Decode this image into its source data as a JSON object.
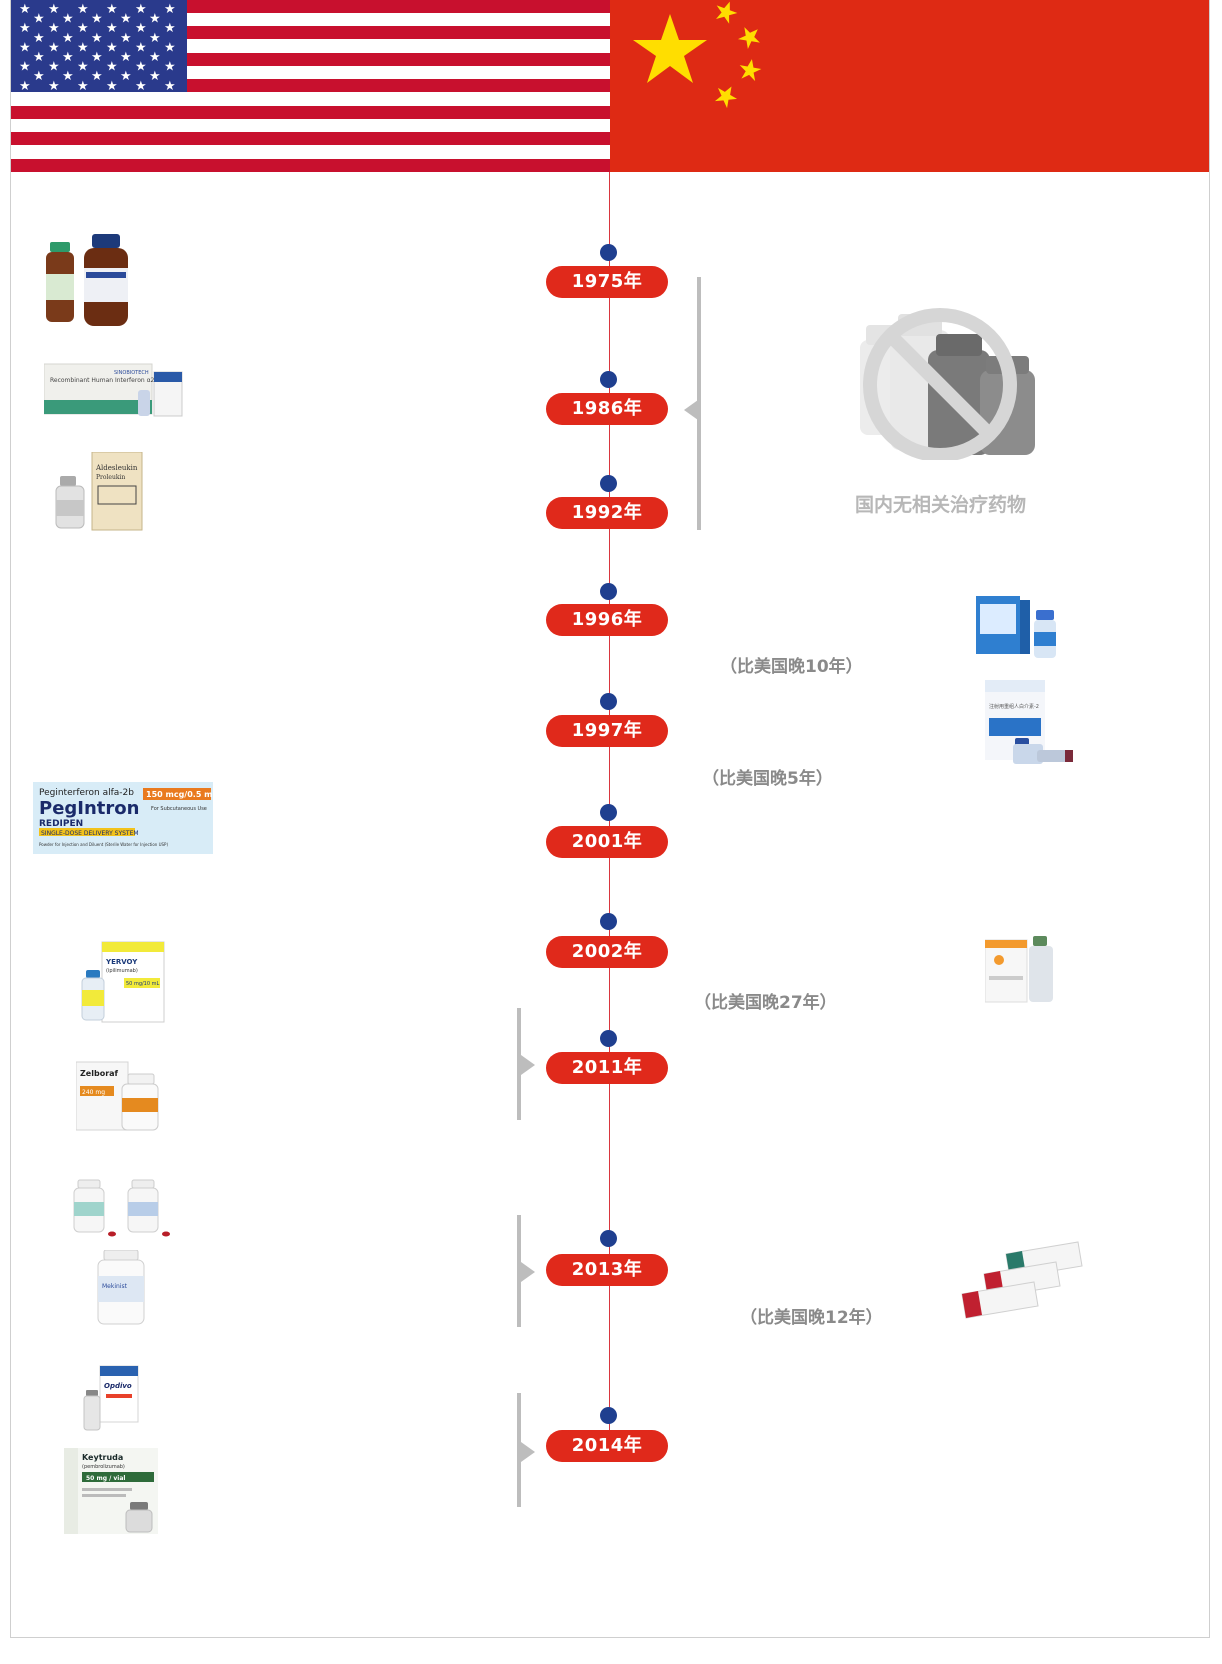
{
  "timeline": {
    "years": [
      "1975年",
      "1986年",
      "1992年",
      "1996年",
      "1997年",
      "2001年",
      "2002年",
      "2011年",
      "2013年",
      "2014年"
    ]
  },
  "china": {
    "no_drug_label": "国内无相关治疗药物",
    "lag_notes": [
      "（比美国晚10年）",
      "（比美国晚5年）",
      "（比美国晚27年）",
      "（比美国晚12年）"
    ]
  },
  "products": {
    "interferon_box_text": "Recombinant Human Interferon α2b",
    "interferon_brand": "SINOBIOTECH",
    "aldesleukin_name": "Aldesleukin",
    "aldesleukin_brand": "Proleukin",
    "peg_top": "Peginterferon alfa-2b",
    "peg_dose": "150 mcg/0.5 mL",
    "peg_brand": "PegIntron",
    "peg_redipen": "REDIPEN",
    "peg_system": "SINGLE-DOSE DELIVERY SYSTEM",
    "peg_note": "For Subcutaneous Use",
    "peg_footer": "Powder for Injection and Diluent (Sterile Water for Injection USP)",
    "yervoy_brand": "YERVOY",
    "yervoy_generic": "(ipilimumab)",
    "yervoy_dose": "50 mg/10 mL",
    "zelboraf_brand": "Zelboraf",
    "zelboraf_dose": "240 mg",
    "mekinist_brand": "Mekinist",
    "opdivo_brand": "Opdivo",
    "keytruda_brand": "Keytruda",
    "keytruda_generic": "(pembrolizumab)",
    "keytruda_dose": "50 mg / vial",
    "cn_ifn2_label": "注射用重组人白介素-2"
  },
  "colors": {
    "us_red": "#c8102e",
    "us_blue": "#2a3a8c",
    "cn_red": "#de2a14",
    "cn_yellow": "#ffde00",
    "pill_red": "#e0291b",
    "dot_blue": "#1f3f8f",
    "note_gray": "#8a8a8a"
  }
}
